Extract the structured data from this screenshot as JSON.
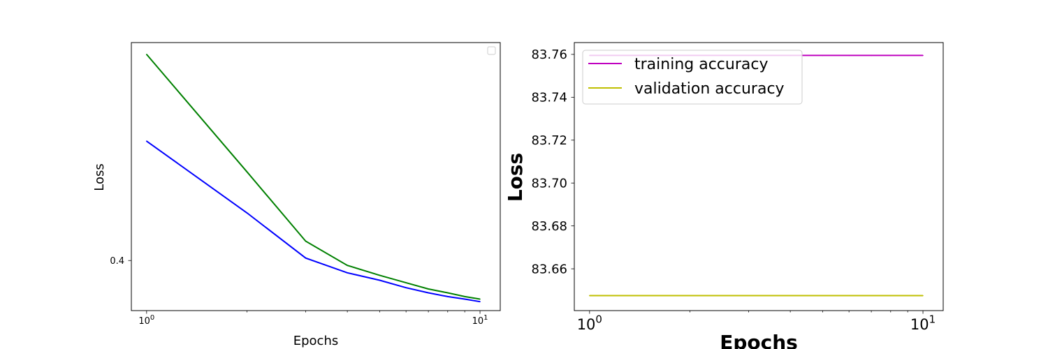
{
  "chart_data": [
    {
      "type": "line",
      "xlabel": "Epochs",
      "ylabel": "Loss",
      "xscale": "log",
      "yscale": "log",
      "xlim": [
        0.9,
        11.5
      ],
      "ylim": [
        0.38,
        0.5
      ],
      "x_tick_labels": [
        {
          "base": "10",
          "exp": "0",
          "value": 1
        },
        {
          "base": "10",
          "exp": "1",
          "value": 10
        }
      ],
      "y_tick_labels": [
        {
          "label": "0.4",
          "value": 0.4
        }
      ],
      "legend": {
        "placement": "upper right",
        "entries": []
      },
      "series": [
        {
          "color": "#0000ff",
          "x": [
            1,
            2,
            3,
            4,
            5,
            6,
            7,
            8,
            9,
            10
          ],
          "y": [
            0.452,
            0.42,
            0.401,
            0.395,
            0.392,
            0.389,
            0.387,
            0.3855,
            0.3845,
            0.3835
          ]
        },
        {
          "color": "#008000",
          "x": [
            1,
            2,
            3,
            4,
            5,
            6,
            7,
            8,
            9,
            10
          ],
          "y": [
            0.494,
            0.438,
            0.408,
            0.398,
            0.394,
            0.391,
            0.3885,
            0.387,
            0.3855,
            0.3845
          ]
        }
      ]
    },
    {
      "type": "line",
      "xlabel": "Epochs",
      "ylabel": "Loss",
      "xscale": "log",
      "xlim": [
        0.9,
        11.5
      ],
      "ylim": [
        83.6405,
        83.7655
      ],
      "x_tick_labels": [
        {
          "base": "10",
          "exp": "0",
          "value": 1
        },
        {
          "base": "10",
          "exp": "1",
          "value": 10
        }
      ],
      "y_tick_labels": [
        {
          "label": "83.66",
          "value": 83.66
        },
        {
          "label": "83.68",
          "value": 83.68
        },
        {
          "label": "83.70",
          "value": 83.7
        },
        {
          "label": "83.72",
          "value": 83.72
        },
        {
          "label": "83.74",
          "value": 83.74
        },
        {
          "label": "83.76",
          "value": 83.76
        }
      ],
      "legend": {
        "placement": "upper left",
        "entries": [
          {
            "label": "training accuracy",
            "color": "#bf00bf"
          },
          {
            "label": "validation accuracy",
            "color": "#bfbf00"
          }
        ]
      },
      "series": [
        {
          "name": "training accuracy",
          "color": "#bf00bf",
          "x": [
            1,
            2,
            3,
            4,
            5,
            6,
            7,
            8,
            9,
            10
          ],
          "y": [
            83.7595,
            83.7595,
            83.7595,
            83.7595,
            83.7595,
            83.7595,
            83.7595,
            83.7595,
            83.7595,
            83.7595
          ]
        },
        {
          "name": "validation accuracy",
          "color": "#bfbf00",
          "x": [
            1,
            2,
            3,
            4,
            5,
            6,
            7,
            8,
            9,
            10
          ],
          "y": [
            83.6475,
            83.6475,
            83.6475,
            83.6475,
            83.6475,
            83.6475,
            83.6475,
            83.6475,
            83.6475,
            83.6475
          ]
        }
      ]
    }
  ]
}
